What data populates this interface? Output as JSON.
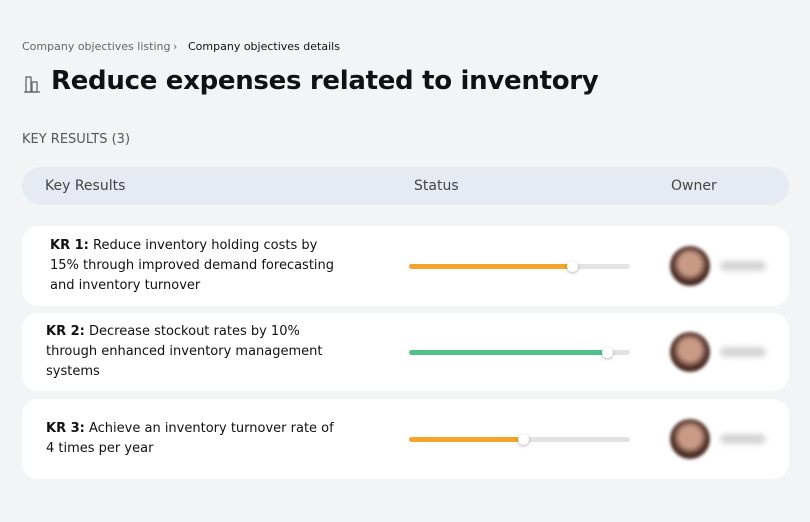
{
  "breadcrumb": {
    "items": [
      "Company objectives listing",
      "Company objectives details"
    ]
  },
  "header": {
    "title": "Reduce expenses related to inventory"
  },
  "section": {
    "label": "KEY RESULTS (3)"
  },
  "table": {
    "columns": [
      "Key Results",
      "Status",
      "Owner"
    ],
    "rows": [
      {
        "label": "KR 1:",
        "text": "Reduce inventory holding costs by 15% through improved demand forecasting and inventory turnover",
        "progress": 74,
        "color": "#f5a42c"
      },
      {
        "label": "KR 2:",
        "text": "Decrease stockout rates by 10% through enhanced inventory management systems",
        "progress": 90,
        "color": "#4fc189"
      },
      {
        "label": "KR 3:",
        "text": "Achieve an inventory turnover rate of 4 times per year",
        "progress": 52,
        "color": "#f5a42c"
      }
    ]
  }
}
